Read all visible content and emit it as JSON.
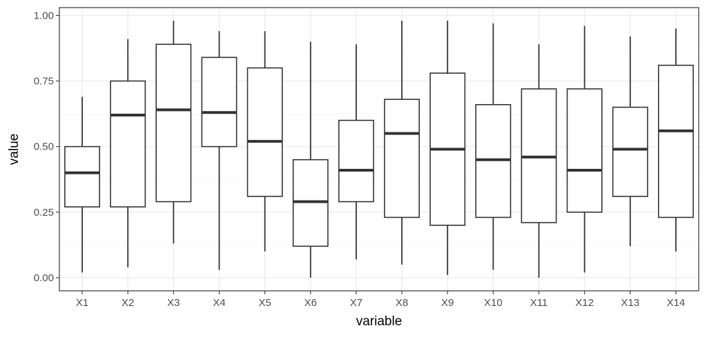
{
  "chart_data": {
    "type": "boxplot",
    "title": "",
    "xlabel": "variable",
    "ylabel": "value",
    "ylim": [
      -0.05,
      1.03
    ],
    "yticks": [
      0.0,
      0.25,
      0.5,
      0.75,
      1.0
    ],
    "ytick_labels": [
      "0.00",
      "0.25",
      "0.50",
      "0.75",
      "1.00"
    ],
    "grid": true,
    "legend": "none",
    "categories": [
      "X1",
      "X2",
      "X3",
      "X4",
      "X5",
      "X6",
      "X7",
      "X8",
      "X9",
      "X10",
      "X11",
      "X12",
      "X13",
      "X14"
    ],
    "boxes": [
      {
        "min": 0.02,
        "q1": 0.27,
        "median": 0.4,
        "q3": 0.5,
        "max": 0.69
      },
      {
        "min": 0.04,
        "q1": 0.27,
        "median": 0.62,
        "q3": 0.75,
        "max": 0.91
      },
      {
        "min": 0.13,
        "q1": 0.29,
        "median": 0.64,
        "q3": 0.89,
        "max": 0.98
      },
      {
        "min": 0.03,
        "q1": 0.5,
        "median": 0.63,
        "q3": 0.84,
        "max": 0.94
      },
      {
        "min": 0.1,
        "q1": 0.31,
        "median": 0.52,
        "q3": 0.8,
        "max": 0.94
      },
      {
        "min": 0.0,
        "q1": 0.12,
        "median": 0.29,
        "q3": 0.45,
        "max": 0.9
      },
      {
        "min": 0.07,
        "q1": 0.29,
        "median": 0.41,
        "q3": 0.6,
        "max": 0.89
      },
      {
        "min": 0.05,
        "q1": 0.23,
        "median": 0.55,
        "q3": 0.68,
        "max": 0.98
      },
      {
        "min": 0.01,
        "q1": 0.2,
        "median": 0.49,
        "q3": 0.78,
        "max": 0.98
      },
      {
        "min": 0.03,
        "q1": 0.23,
        "median": 0.45,
        "q3": 0.66,
        "max": 0.97
      },
      {
        "min": 0.0,
        "q1": 0.21,
        "median": 0.46,
        "q3": 0.72,
        "max": 0.89
      },
      {
        "min": 0.02,
        "q1": 0.25,
        "median": 0.41,
        "q3": 0.72,
        "max": 0.96
      },
      {
        "min": 0.12,
        "q1": 0.31,
        "median": 0.49,
        "q3": 0.65,
        "max": 0.92
      },
      {
        "min": 0.1,
        "q1": 0.23,
        "median": 0.56,
        "q3": 0.81,
        "max": 0.95
      }
    ]
  }
}
